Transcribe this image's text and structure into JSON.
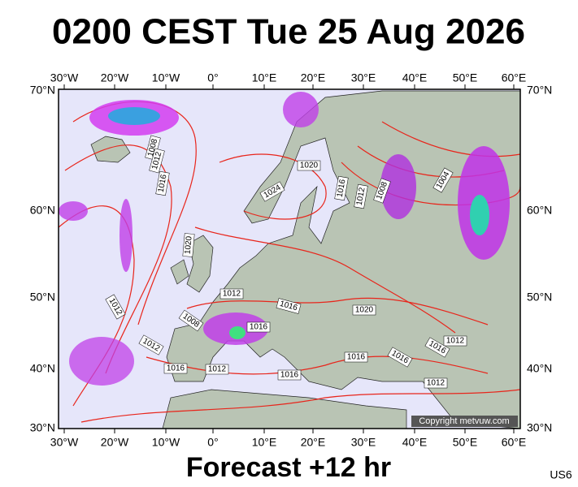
{
  "header": {
    "title": "0200 CEST Tue 25 Aug 2026"
  },
  "footer": {
    "forecast": "Forecast +12 hr",
    "station": "US6"
  },
  "map": {
    "copyright": "Copyright metvuw.com",
    "lon_labels": [
      "30°W",
      "20°W",
      "10°W",
      "0°",
      "10°E",
      "20°E",
      "30°E",
      "40°E",
      "50°E",
      "60°E"
    ],
    "lat_labels": [
      "70°N",
      "60°N",
      "50°N",
      "40°N",
      "30°N"
    ],
    "isobar_labels": [
      "1008",
      "1012",
      "1016",
      "1020",
      "1024",
      "1016",
      "1012",
      "1008",
      "1004",
      "1020",
      "1012",
      "1016",
      "1020",
      "1012",
      "1008",
      "1016",
      "1012",
      "1016",
      "1012",
      "1016",
      "1016",
      "1016",
      "1012",
      "1016",
      "1012"
    ]
  }
}
